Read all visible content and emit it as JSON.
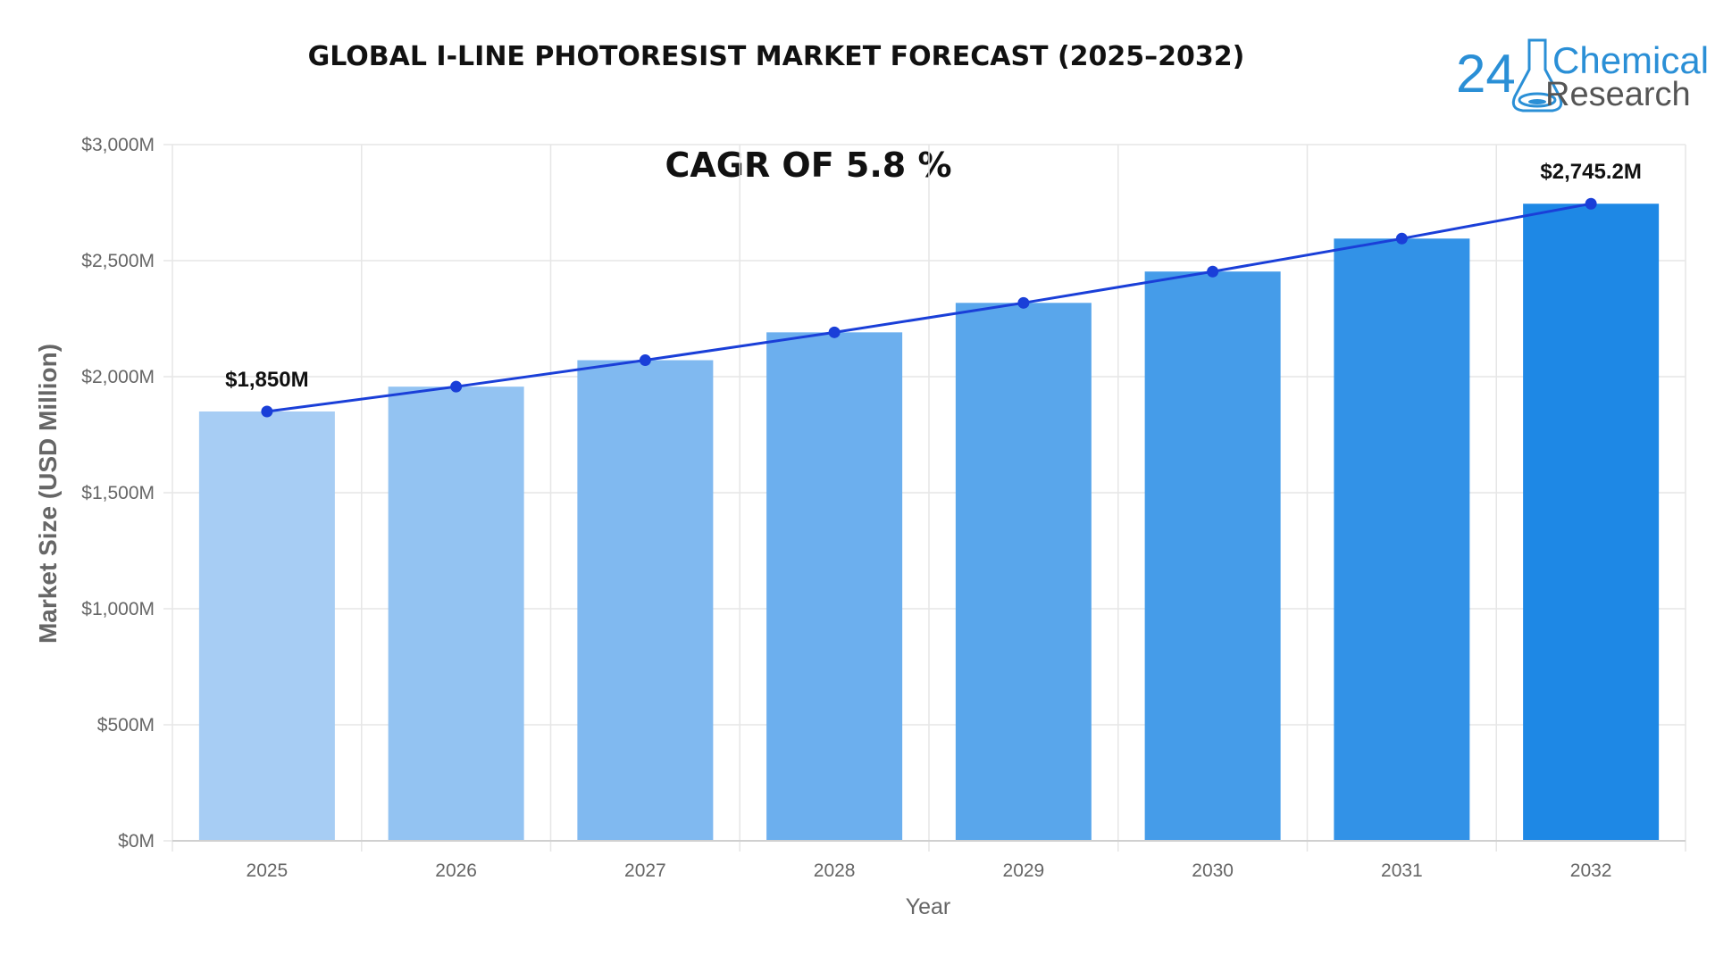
{
  "header": {
    "title": "GLOBAL I-LINE PHOTORESIST MARKET FORECAST (2025–2032)",
    "cagr": "CAGR OF 5.8  %"
  },
  "logo": {
    "number": "24",
    "word1": "Chemical",
    "word2": "Research"
  },
  "chart_data": {
    "type": "bar",
    "categories": [
      "2025",
      "2026",
      "2027",
      "2028",
      "2029",
      "2030",
      "2031",
      "2032"
    ],
    "values": [
      1850,
      1957,
      2071,
      2191,
      2318,
      2453,
      2595,
      2745.2
    ],
    "line_overlay": true,
    "xlabel": "Year",
    "ylabel": "Market Size (USD Million)",
    "ylim": [
      0,
      3000
    ],
    "yticks": [
      "$0M",
      "$500M",
      "$1,000M",
      "$1,500M",
      "$2,000M",
      "$2,500M",
      "$3,000M"
    ],
    "data_labels": [
      {
        "category": "2025",
        "text": "$1,850M"
      },
      {
        "category": "2032",
        "text": "$2,745.2M"
      }
    ],
    "grid": true,
    "legend": "none",
    "colors": {
      "bar_start": "#a7cdf4",
      "bar_end": "#1e88e5",
      "line": "#1a3fd8",
      "grid": "#e6e6e6"
    }
  }
}
